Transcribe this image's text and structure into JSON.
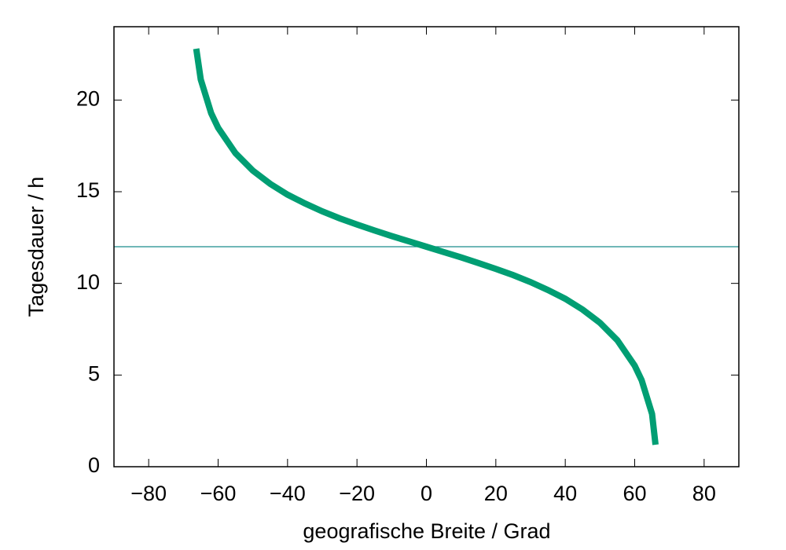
{
  "chart_data": {
    "type": "line",
    "xlabel": "geografische Breite / Grad",
    "ylabel": "Tagesdauer / h",
    "x": [
      -66.3,
      -65,
      -62,
      -60,
      -55,
      -50,
      -45,
      -40,
      -35,
      -30,
      -25,
      -20,
      -15,
      -10,
      -5,
      0,
      5,
      10,
      15,
      20,
      25,
      30,
      35,
      40,
      45,
      50,
      55,
      60,
      62,
      65,
      66
    ],
    "series": [
      {
        "color": "#009e73",
        "values": [
          22.8,
          21.12,
          19.28,
          18.49,
          17.1,
          16.15,
          15.43,
          14.84,
          14.36,
          13.93,
          13.55,
          13.21,
          12.89,
          12.58,
          12.29,
          12,
          11.71,
          11.42,
          11.11,
          10.79,
          10.45,
          10.07,
          9.64,
          9.16,
          8.57,
          7.85,
          6.9,
          5.51,
          4.72,
          2.88,
          1.2
        ]
      }
    ],
    "hline": {
      "value": 12,
      "color": "#1a8c8c"
    },
    "xlim": [
      -90,
      90
    ],
    "ylim": [
      0,
      24
    ],
    "xticks": [
      {
        "value": -80,
        "label": "−80"
      },
      {
        "value": -60,
        "label": "−60"
      },
      {
        "value": -40,
        "label": "−40"
      },
      {
        "value": -20,
        "label": "−20"
      },
      0,
      20,
      40,
      60,
      80
    ],
    "yticks": [
      0,
      5,
      10,
      15,
      20
    ],
    "grid": false
  }
}
